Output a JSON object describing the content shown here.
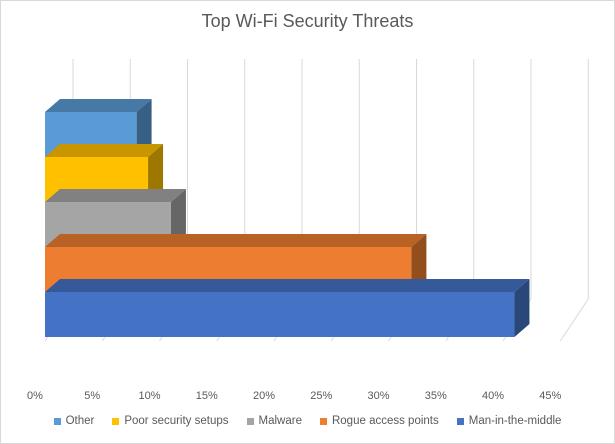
{
  "chart_data": {
    "type": "bar",
    "orientation": "horizontal",
    "style": "3d-stacked",
    "title": "Top Wi-Fi Security Threats",
    "xlabel": "",
    "ylabel": "",
    "xlim": [
      0,
      45
    ],
    "x_ticks": [
      "0%",
      "5%",
      "10%",
      "15%",
      "20%",
      "25%",
      "30%",
      "35%",
      "40%",
      "45%"
    ],
    "grid": true,
    "legend_position": "bottom",
    "series": [
      {
        "name": "Man-in-the-middle",
        "value": 41,
        "color": "#4472c4"
      },
      {
        "name": "Rogue access points",
        "value": 32,
        "color": "#ed7d31"
      },
      {
        "name": "Malware",
        "value": 11,
        "color": "#a5a5a5"
      },
      {
        "name": "Poor security setups",
        "value": 9,
        "color": "#ffc000"
      },
      {
        "name": "Other",
        "value": 8,
        "color": "#5b9bd5"
      }
    ],
    "legend_order": [
      "Other",
      "Poor security setups",
      "Malware",
      "Rogue access points",
      "Man-in-the-middle"
    ]
  }
}
